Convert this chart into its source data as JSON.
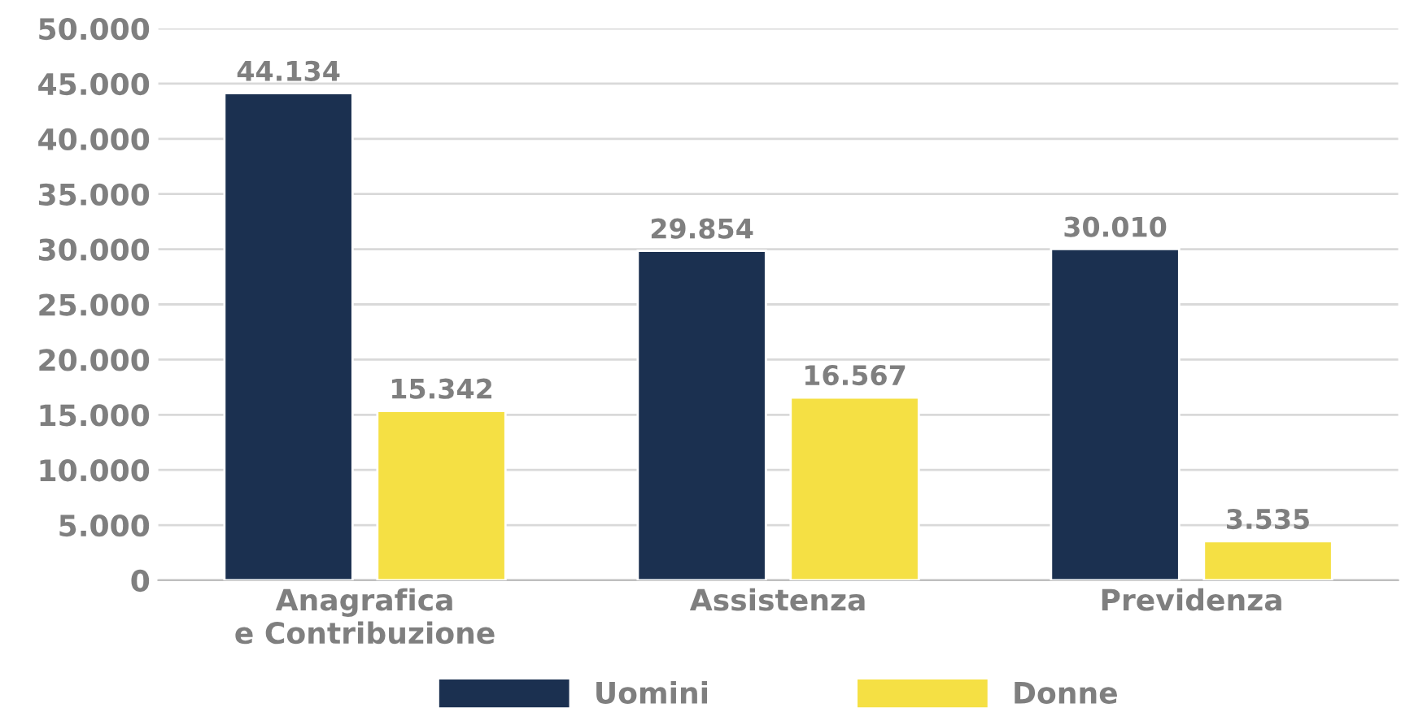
{
  "chart_data": {
    "type": "bar",
    "categories": [
      "Anagrafica\ne Contribuzione",
      "Assistenza",
      "Previdenza"
    ],
    "series": [
      {
        "name": "Uomini",
        "color": "#1b3050",
        "values": [
          44134,
          29854,
          30010
        ],
        "value_labels": [
          "44.134",
          "29.854",
          "30.010"
        ]
      },
      {
        "name": "Donne",
        "color": "#f5e044",
        "values": [
          15342,
          16567,
          3535
        ],
        "value_labels": [
          "15.342",
          "16.567",
          "3.535"
        ]
      }
    ],
    "ylim": [
      0,
      50000
    ],
    "yticks": [
      {
        "value": 0,
        "label": "0"
      },
      {
        "value": 5000,
        "label": "5.000"
      },
      {
        "value": 10000,
        "label": "10.000"
      },
      {
        "value": 15000,
        "label": "15.000"
      },
      {
        "value": 20000,
        "label": "20.000"
      },
      {
        "value": 25000,
        "label": "25.000"
      },
      {
        "value": 30000,
        "label": "30.000"
      },
      {
        "value": 35000,
        "label": "35.000"
      },
      {
        "value": 40000,
        "label": "40.000"
      },
      {
        "value": 45000,
        "label": "45.000"
      },
      {
        "value": 50000,
        "label": "50.000"
      }
    ],
    "grid": "y",
    "legend": "bottom"
  }
}
